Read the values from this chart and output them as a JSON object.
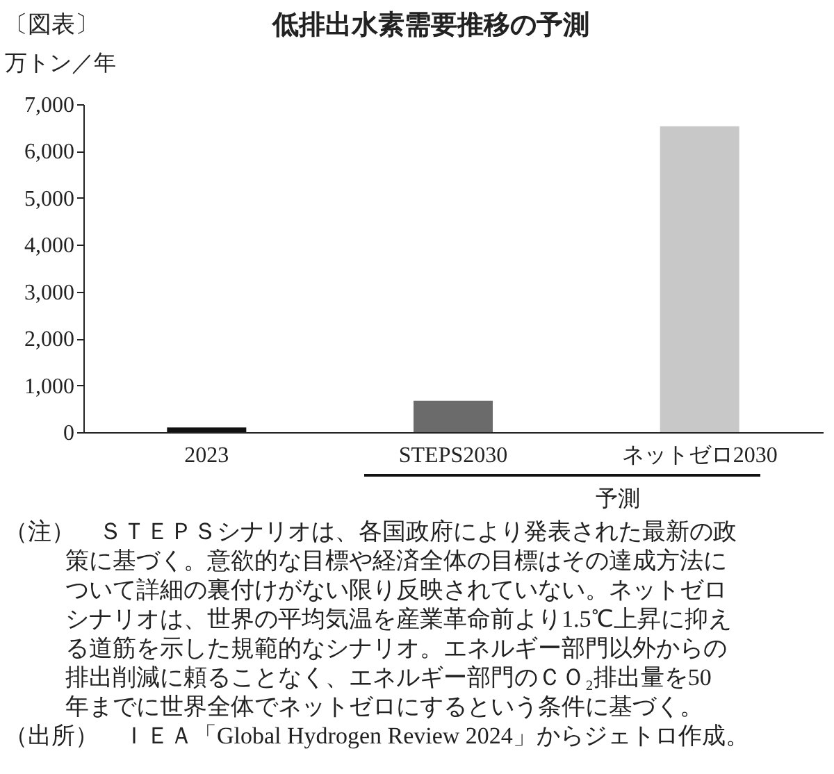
{
  "chart_data": {
    "type": "bar",
    "title": "低排出水素需要推移の予測",
    "ylabel": "万トン／年",
    "categories": [
      "2023",
      "STEPS2030",
      "ネットゼロ2030"
    ],
    "values": [
      100,
      670,
      6530
    ],
    "colors": [
      "#111111",
      "#6b6b6b",
      "#c8c8c8"
    ],
    "ylim": [
      0,
      7000
    ],
    "yticks": [
      0,
      {
        "value": 1000,
        "label": "1,000"
      },
      {
        "value": 2000,
        "label": "2,000"
      },
      {
        "value": 3000,
        "label": "3,000"
      },
      {
        "value": 4000,
        "label": "4,000"
      },
      {
        "value": 5000,
        "label": "5,000"
      },
      {
        "value": 6000,
        "label": "6,000"
      },
      {
        "value": 7000,
        "label": "7,000"
      }
    ],
    "grid": false,
    "legend": false,
    "annotations": [
      "〔図表〕",
      "予測",
      "（注）　ＳＴＥＰＳシナリオは、各国政府により発表された最新の政策に基づく。意欲的な目標や経済全体の目標はその達成方法について詳細の裏付けがない限り反映されていない。ネットゼロシナリオは、世界の平均気温を産業革命前より1.5℃上昇に抑える道筋を示した規範的なシナリオ。エネルギー部門以外からの排出削減に頼ることなく、エネルギー部門のＣＯ₂排出量を50年までに世界全体でネットゼロにするという条件に基づく。",
      "（出所）　ＩＥＡ「Global Hydrogen Review 2024」からジェトロ作成。"
    ]
  }
}
